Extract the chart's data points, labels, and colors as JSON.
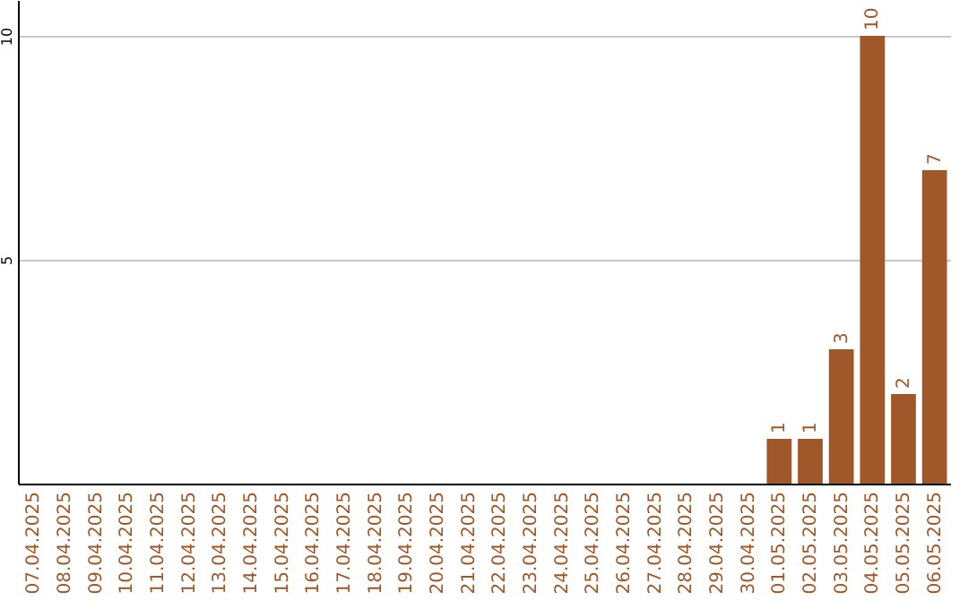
{
  "chart_data": {
    "type": "bar",
    "categories": [
      "07.04.2025",
      "08.04.2025",
      "09.04.2025",
      "10.04.2025",
      "11.04.2025",
      "12.04.2025",
      "13.04.2025",
      "14.04.2025",
      "15.04.2025",
      "16.04.2025",
      "17.04.2025",
      "18.04.2025",
      "19.04.2025",
      "20.04.2025",
      "21.04.2025",
      "22.04.2025",
      "23.04.2025",
      "24.04.2025",
      "25.04.2025",
      "26.04.2025",
      "27.04.2025",
      "28.04.2025",
      "29.04.2025",
      "30.04.2025",
      "01.05.2025",
      "02.05.2025",
      "03.05.2025",
      "04.05.2025",
      "05.05.2025",
      "06.05.2025"
    ],
    "values": [
      0,
      0,
      0,
      0,
      0,
      0,
      0,
      0,
      0,
      0,
      0,
      0,
      0,
      0,
      0,
      0,
      0,
      0,
      0,
      0,
      0,
      0,
      0,
      0,
      1,
      1,
      3,
      10,
      2,
      7
    ],
    "value_labels": [
      null,
      null,
      null,
      null,
      null,
      null,
      null,
      null,
      null,
      null,
      null,
      null,
      null,
      null,
      null,
      null,
      null,
      null,
      null,
      null,
      null,
      null,
      null,
      null,
      "1",
      "1",
      "3",
      "10",
      "2",
      "7"
    ],
    "color": "#a0582a",
    "ylim": [
      0,
      10.8
    ],
    "yticks": [
      5,
      10
    ],
    "grid": "y"
  }
}
